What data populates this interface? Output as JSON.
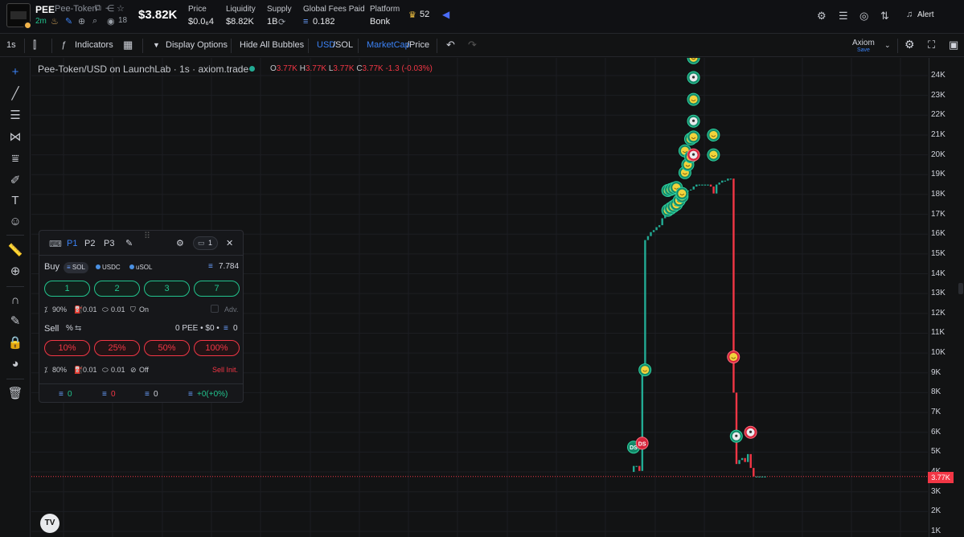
{
  "header": {
    "ticker": "PEE",
    "name": "Pee-Token",
    "age": "2m",
    "holders_count": "18",
    "market_cap": "$3.82K",
    "stats": [
      {
        "label": "Price",
        "value": "$0.0₆4"
      },
      {
        "label": "Liquidity",
        "value": "$8.82K"
      },
      {
        "label": "Supply",
        "value": "1B"
      },
      {
        "label": "Global Fees Paid",
        "value": "0.182"
      },
      {
        "label": "Platform",
        "value": "Bonk"
      }
    ],
    "crown_count": "52",
    "alert_label": "Alert"
  },
  "toolbar": {
    "interval": "1s",
    "indicators": "Indicators",
    "display_options": "Display Options",
    "hide_bubbles": "Hide All Bubbles",
    "usd": "USD",
    "sol": "/SOL",
    "marketcap": "MarketCap",
    "price": "/Price",
    "layout_name": "Axiom",
    "layout_save": "Save"
  },
  "chart": {
    "legend_title": "Pee-Token/USD on LaunchLab · 1s · axiom.trade",
    "ohlc": {
      "o": "3.77K",
      "h": "3.77K",
      "l": "3.77K",
      "c": "3.77K",
      "chg": "-1.3 (-0.03%)"
    },
    "yticks": [
      "24K",
      "23K",
      "22K",
      "21K",
      "20K",
      "19K",
      "18K",
      "17K",
      "16K",
      "15K",
      "14K",
      "13K",
      "12K",
      "11K",
      "10K",
      "9K",
      "8K",
      "7K",
      "6K",
      "5K",
      "4K",
      "3K",
      "2K",
      "1K"
    ],
    "last_price_label": "3.77K",
    "colors": {
      "up": "#22ab94",
      "down": "#f23645"
    }
  },
  "chart_data": {
    "type": "candlestick",
    "ylim": [
      1000,
      24500
    ],
    "candles": [
      {
        "t": 1,
        "o": 4000,
        "c": 4300
      },
      {
        "t": 2,
        "o": 4300,
        "c": 4300
      },
      {
        "t": 3,
        "o": 4300,
        "c": 4050
      },
      {
        "t": 4,
        "o": 4050,
        "c": 9000
      },
      {
        "t": 5,
        "o": 9000,
        "c": 15700
      },
      {
        "t": 6,
        "o": 15700,
        "c": 15900
      },
      {
        "t": 7,
        "o": 15900,
        "c": 16100
      },
      {
        "t": 8,
        "o": 16100,
        "c": 16200
      },
      {
        "t": 9,
        "o": 16200,
        "c": 16350
      },
      {
        "t": 10,
        "o": 16350,
        "c": 16450
      },
      {
        "t": 11,
        "o": 16450,
        "c": 16800
      },
      {
        "t": 12,
        "o": 16800,
        "c": 17100
      },
      {
        "t": 13,
        "o": 17100,
        "c": 17300
      },
      {
        "t": 14,
        "o": 17300,
        "c": 17400
      },
      {
        "t": 15,
        "o": 17400,
        "c": 17600
      },
      {
        "t": 16,
        "o": 17600,
        "c": 17800
      },
      {
        "t": 17,
        "o": 17800,
        "c": 18000
      },
      {
        "t": 18,
        "o": 18000,
        "c": 18100
      },
      {
        "t": 19,
        "o": 18100,
        "c": 18150
      },
      {
        "t": 20,
        "o": 18150,
        "c": 18200
      },
      {
        "t": 21,
        "o": 18200,
        "c": 18250
      },
      {
        "t": 22,
        "o": 18250,
        "c": 18400
      },
      {
        "t": 23,
        "o": 18400,
        "c": 18500
      },
      {
        "t": 24,
        "o": 18500,
        "c": 18500
      },
      {
        "t": 25,
        "o": 18500,
        "c": 18500
      },
      {
        "t": 26,
        "o": 18500,
        "c": 18500
      },
      {
        "t": 27,
        "o": 18500,
        "c": 18500
      },
      {
        "t": 28,
        "o": 18500,
        "c": 18400
      },
      {
        "t": 29,
        "o": 18400,
        "c": 18050
      },
      {
        "t": 30,
        "o": 18050,
        "c": 18500
      },
      {
        "t": 31,
        "o": 18500,
        "c": 18600
      },
      {
        "t": 32,
        "o": 18600,
        "c": 18700
      },
      {
        "t": 33,
        "o": 18700,
        "c": 18700
      },
      {
        "t": 34,
        "o": 18700,
        "c": 18800
      },
      {
        "t": 35,
        "o": 18800,
        "c": 18800
      },
      {
        "t": 36,
        "o": 18800,
        "c": 8000
      },
      {
        "t": 37,
        "o": 8000,
        "c": 4400
      },
      {
        "t": 38,
        "o": 4400,
        "c": 4600
      },
      {
        "t": 39,
        "o": 4600,
        "c": 4700
      },
      {
        "t": 40,
        "o": 4700,
        "c": 4500
      },
      {
        "t": 41,
        "o": 4500,
        "c": 4900
      },
      {
        "t": 42,
        "o": 4900,
        "c": 4200
      },
      {
        "t": 43,
        "o": 4200,
        "c": 3770
      },
      {
        "t": 44,
        "o": 3770,
        "c": 3770
      },
      {
        "t": 45,
        "o": 3770,
        "c": 3770
      },
      {
        "t": 46,
        "o": 3770,
        "c": 3770
      },
      {
        "t": 47,
        "o": 3770,
        "c": 3770
      }
    ],
    "last_price": 3770,
    "bubbles": [
      {
        "t": 1,
        "p": 5250,
        "kind": "buy",
        "label": "DS"
      },
      {
        "t": 4,
        "p": 5450,
        "kind": "sell",
        "label": "DS"
      },
      {
        "t": 5,
        "p": 9150,
        "kind": "buy-face"
      },
      {
        "t": 13,
        "p": 17200,
        "kind": "buy-face"
      },
      {
        "t": 14,
        "p": 17300,
        "kind": "buy-face"
      },
      {
        "t": 15,
        "p": 17400,
        "kind": "buy-face"
      },
      {
        "t": 16,
        "p": 17500,
        "kind": "buy-face"
      },
      {
        "t": 17,
        "p": 17700,
        "kind": "buy-face"
      },
      {
        "t": 18,
        "p": 17900,
        "kind": "buy-face"
      },
      {
        "t": 13,
        "p": 18200,
        "kind": "buy-face"
      },
      {
        "t": 14,
        "p": 18250,
        "kind": "buy-face"
      },
      {
        "t": 15,
        "p": 18300,
        "kind": "buy-face"
      },
      {
        "t": 16,
        "p": 18350,
        "kind": "buy-face"
      },
      {
        "t": 18,
        "p": 18050,
        "kind": "buy-face"
      },
      {
        "t": 19,
        "p": 19100,
        "kind": "buy-face"
      },
      {
        "t": 20,
        "p": 19500,
        "kind": "buy-face"
      },
      {
        "t": 19,
        "p": 20200,
        "kind": "buy-face"
      },
      {
        "t": 21,
        "p": 19900,
        "kind": "buy-face"
      },
      {
        "t": 22,
        "p": 20000,
        "kind": "sell-ghost"
      },
      {
        "t": 21,
        "p": 20800,
        "kind": "buy-face"
      },
      {
        "t": 22,
        "p": 20900,
        "kind": "buy-face"
      },
      {
        "t": 22,
        "p": 21700,
        "kind": "buy-ghost"
      },
      {
        "t": 22,
        "p": 22800,
        "kind": "buy-face"
      },
      {
        "t": 22,
        "p": 23900,
        "kind": "buy-ghost"
      },
      {
        "t": 22,
        "p": 24900,
        "kind": "buy-face"
      },
      {
        "t": 29,
        "p": 21000,
        "kind": "buy-face"
      },
      {
        "t": 29,
        "p": 20000,
        "kind": "buy-face"
      },
      {
        "t": 36,
        "p": 9800,
        "kind": "sell-face"
      },
      {
        "t": 37,
        "p": 5800,
        "kind": "buy-ghost"
      },
      {
        "t": 42,
        "p": 6000,
        "kind": "sell-ghost"
      }
    ]
  },
  "panel": {
    "tabs": [
      "P1",
      "P2",
      "P3"
    ],
    "wallet_count": "1",
    "buy_label": "Buy",
    "currencies": [
      "SOL",
      "USDC",
      "uSOL"
    ],
    "balance": "7.784",
    "buy_amounts": [
      "1",
      "2",
      "3",
      "7"
    ],
    "buy_settings": {
      "slippage": "90%",
      "priority": "0.01",
      "bribe": "0.01",
      "mev": "On",
      "adv": "Adv."
    },
    "sell_label": "Sell",
    "sell_mode": "%",
    "sell_holding": "0 PEE • $0 •",
    "sell_holding_sol": "0",
    "sell_amounts": [
      "10%",
      "25%",
      "50%",
      "100%"
    ],
    "sell_settings": {
      "slippage": "80%",
      "priority": "0.01",
      "bribe": "0.01",
      "mev": "Off",
      "init": "Sell Init."
    },
    "footer": [
      "0",
      "0",
      "0",
      "+0(+0%)"
    ]
  }
}
